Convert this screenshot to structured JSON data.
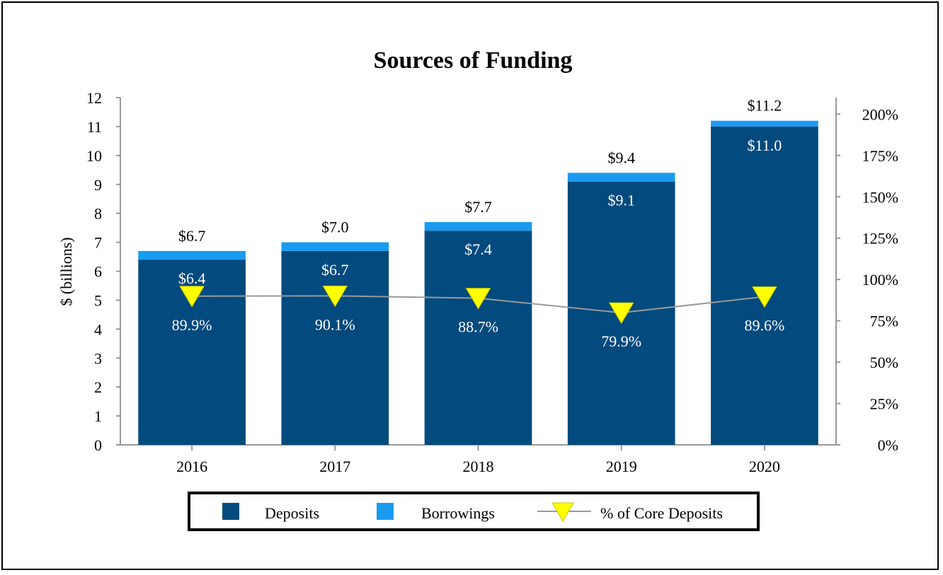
{
  "chart_data": {
    "type": "bar",
    "title": "Sources of Funding",
    "ylabel": "$ (billions)",
    "ylim": [
      0,
      12
    ],
    "y_ticks": [
      "0",
      "1",
      "2",
      "3",
      "4",
      "5",
      "6",
      "7",
      "8",
      "9",
      "10",
      "11",
      "12"
    ],
    "y2lim": [
      0,
      2.1
    ],
    "y2_ticks": [
      "0%",
      "25%",
      "50%",
      "75%",
      "100%",
      "125%",
      "150%",
      "175%",
      "200%"
    ],
    "categories": [
      "2016",
      "2017",
      "2018",
      "2019",
      "2020"
    ],
    "stacked": true,
    "series": [
      {
        "name": "Deposits",
        "values": [
          6.4,
          6.7,
          7.4,
          9.1,
          11.0
        ],
        "color": "#034a7e",
        "labels": [
          "$6.4",
          "$6.7",
          "$7.4",
          "$9.1",
          "$11.0"
        ]
      },
      {
        "name": "Borrowings",
        "values": [
          0.3,
          0.3,
          0.3,
          0.3,
          0.2
        ],
        "color": "#1a9bf0"
      },
      {
        "name": "% of Core Deposits",
        "axis": "right",
        "type": "line",
        "values": [
          0.899,
          0.901,
          0.887,
          0.799,
          0.896
        ],
        "labels": [
          "89.9%",
          "90.1%",
          "88.7%",
          "79.9%",
          "89.6%"
        ],
        "color": "#ffff00",
        "line_color": "#999999"
      }
    ],
    "totals": [
      "$6.7",
      "$7.0",
      "$7.7",
      "$9.4",
      "$11.2"
    ],
    "total_values": [
      6.7,
      7.0,
      7.7,
      9.4,
      11.2
    ],
    "legend": {
      "position": "bottom",
      "items": [
        "Deposits",
        "Borrowings",
        "% of Core Deposits"
      ]
    },
    "grid": false
  }
}
